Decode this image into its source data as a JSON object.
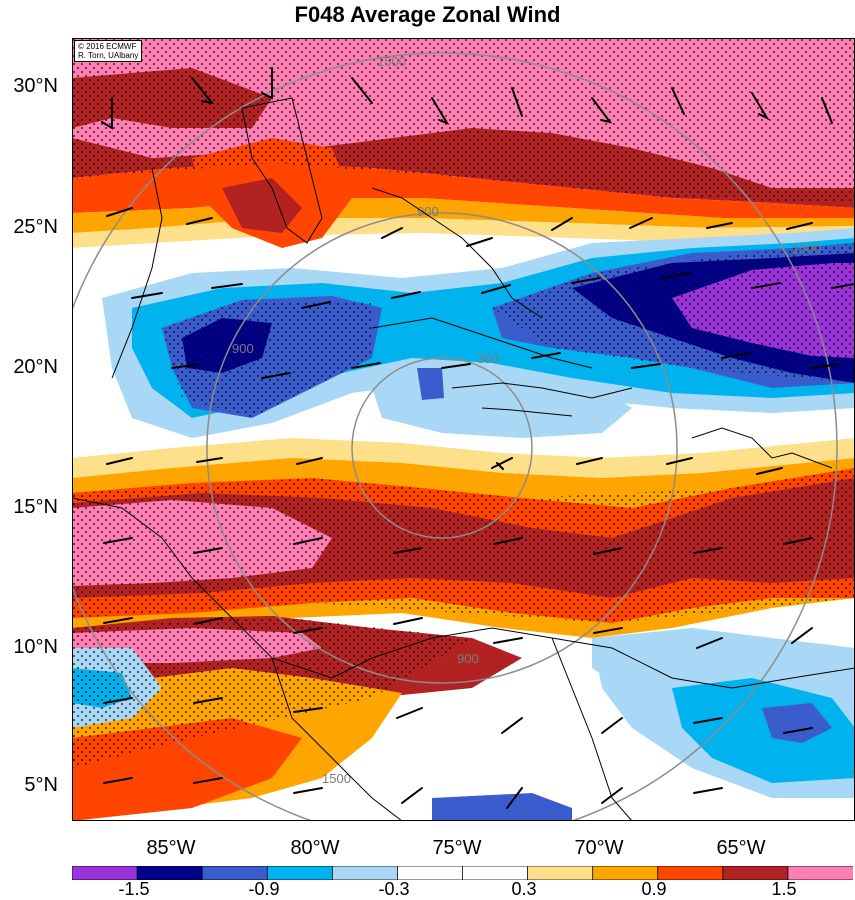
{
  "title": "F048 Average Zonal Wind",
  "credit": [
    "© 2016 ECMWF",
    "R. Torn, UAlbany"
  ],
  "latitude_labels": [
    "30°N",
    "25°N",
    "20°N",
    "15°N",
    "10°N",
    "5°N"
  ],
  "longitude_labels": [
    "85°W",
    "80°W",
    "75°W",
    "70°W",
    "65°W"
  ],
  "range_ring_labels": [
    "300",
    "900",
    "1500"
  ],
  "colorbar": {
    "colors": [
      "#9a33d9",
      "#00008b",
      "#3a5ccc",
      "#00b3ee",
      "#a8d8f5",
      "#ffffff",
      "#ffffff",
      "#ffe08a",
      "#ffa500",
      "#ff4500",
      "#b22222",
      "#ff7eb3"
    ],
    "labels": [
      "-1.5",
      "-0.9",
      "-0.3",
      "0.3",
      "0.9",
      "1.5"
    ]
  },
  "map_colors": {
    "strong_negative": "#9a33d9",
    "dark_blue": "#00008b",
    "royal_blue": "#3a5ccc",
    "sky_blue": "#00b3ee",
    "light_blue": "#a8d8f5",
    "neutral": "#ffffff",
    "light_yellow": "#ffe08a",
    "orange": "#ffa500",
    "red_orange": "#ff4500",
    "dark_red": "#b22222",
    "pink": "#ff7eb3",
    "range_rings": "#8c8c8c",
    "coastline": "#000000"
  }
}
